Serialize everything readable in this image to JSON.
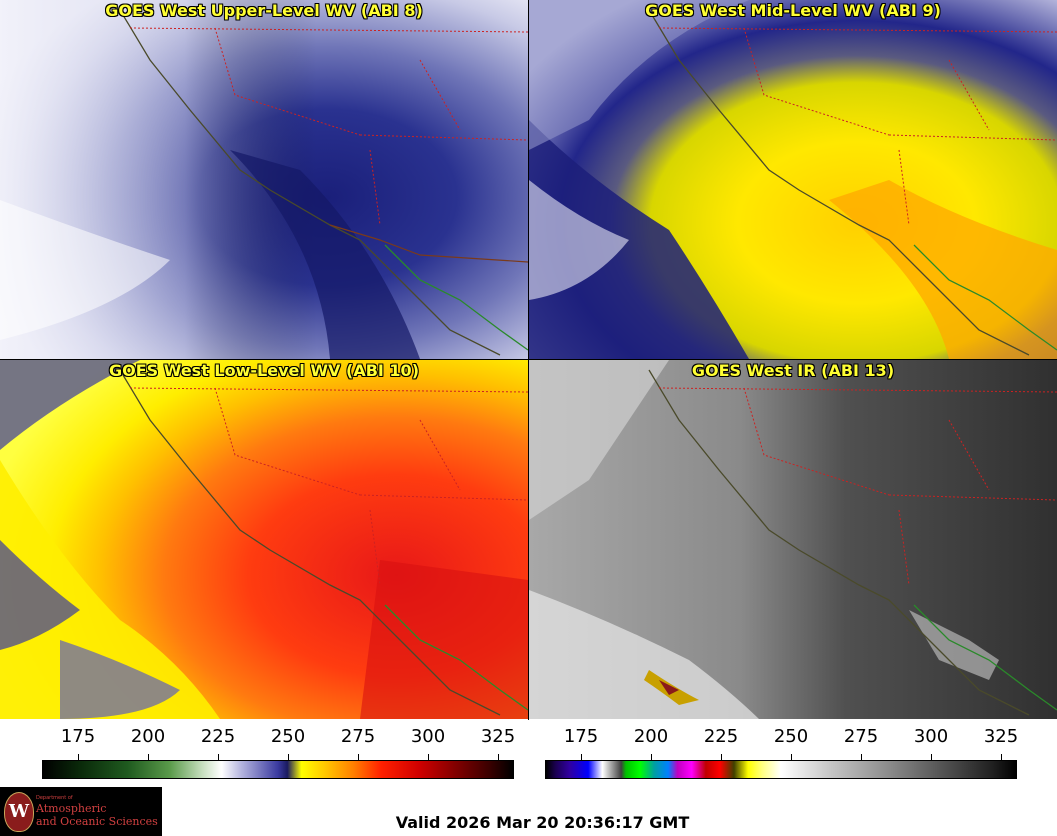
{
  "panels": [
    {
      "title": "GOES West Upper-Level WV (ABI 8)"
    },
    {
      "title": "GOES West Mid-Level WV (ABI 9)"
    },
    {
      "title": "GOES West Low-Level WV (ABI 10)"
    },
    {
      "title": "GOES West IR (ABI 13)"
    }
  ],
  "colorbars": {
    "ticks": [
      "175",
      "200",
      "225",
      "250",
      "275",
      "300",
      "325"
    ]
  },
  "logo": {
    "seal_letter": "W",
    "dept": "Department of",
    "line1": "Atmospheric",
    "line2": "and Oceanic Sciences"
  },
  "valid_text": "Valid 2026 Mar 20 20:36:17 GMT"
}
